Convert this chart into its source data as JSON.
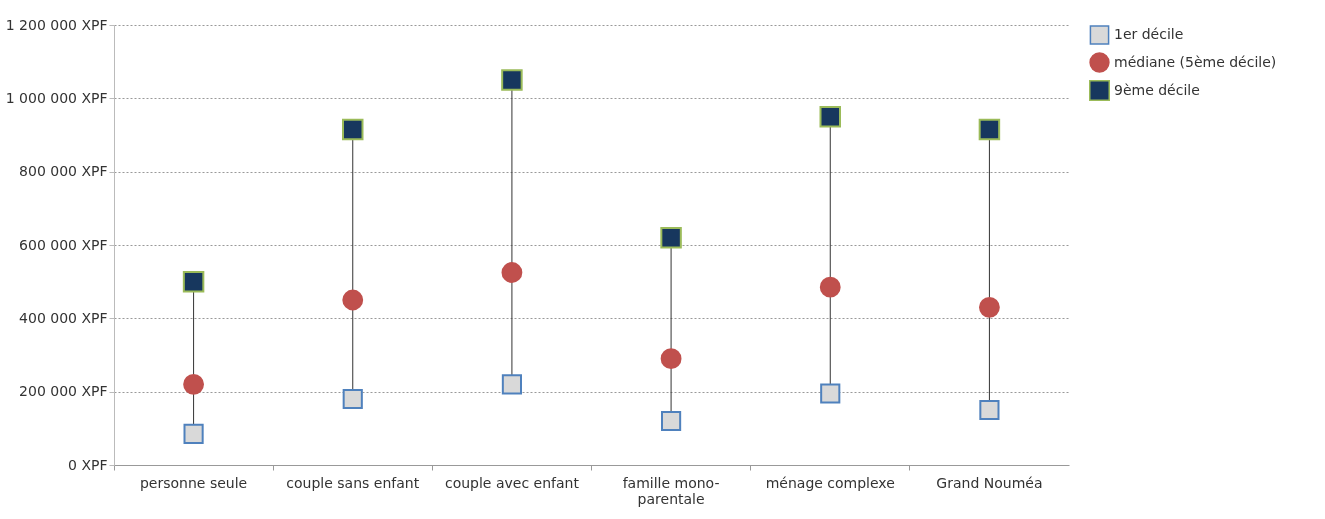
{
  "chart_data": {
    "type": "scatter",
    "categories": [
      "personne seule",
      "couple sans enfant",
      "couple avec enfant",
      "famille mono-parentale",
      "ménage complexe",
      "Grand Nouméa"
    ],
    "series": [
      {
        "name": "1er décile",
        "color": "#d9d9d9",
        "marker": "square",
        "values": [
          85000,
          180000,
          220000,
          120000,
          195000,
          150000
        ]
      },
      {
        "name": "médiane (5ème décile)",
        "color": "#c0504d",
        "marker": "circle",
        "values": [
          220000,
          450000,
          525000,
          290000,
          485000,
          430000
        ]
      },
      {
        "name": "9ème décile",
        "color": "#17375e",
        "marker": "square",
        "values": [
          500000,
          915000,
          1050000,
          620000,
          950000,
          915000
        ]
      }
    ],
    "ylim": [
      0,
      1200000
    ],
    "yticks": [
      {
        "value": 0,
        "label": "0 XPF"
      },
      {
        "value": 200000,
        "label": "200 000 XPF"
      },
      {
        "value": 400000,
        "label": "400 000 XPF"
      },
      {
        "value": 600000,
        "label": "600 000 XPF"
      },
      {
        "value": 800000,
        "label": "800 000 XPF"
      },
      {
        "value": 1000000,
        "label": "1 000 000 XPF"
      },
      {
        "value": 1200000,
        "label": "1 200 000 XPF"
      }
    ],
    "grid": "y",
    "legend": "right"
  }
}
